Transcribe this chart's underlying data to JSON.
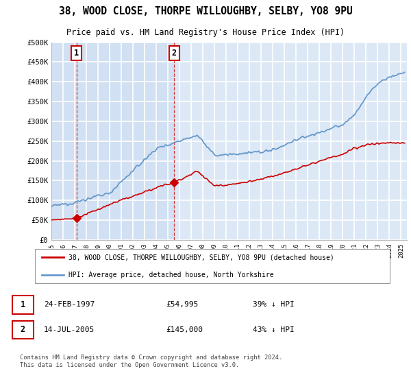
{
  "title": "38, WOOD CLOSE, THORPE WILLOUGHBY, SELBY, YO8 9PU",
  "subtitle": "Price paid vs. HM Land Registry's House Price Index (HPI)",
  "background_color": "#ffffff",
  "plot_bg_color": "#dce8f5",
  "grid_color": "#ffffff",
  "ylim": [
    0,
    500000
  ],
  "yticks": [
    0,
    50000,
    100000,
    150000,
    200000,
    250000,
    300000,
    350000,
    400000,
    450000,
    500000
  ],
  "ytick_labels": [
    "£0",
    "£50K",
    "£100K",
    "£150K",
    "£200K",
    "£250K",
    "£300K",
    "£350K",
    "£400K",
    "£450K",
    "£500K"
  ],
  "xlim_start": 1995.0,
  "xlim_end": 2025.5,
  "sale1_x": 1997.15,
  "sale1_y": 54995,
  "sale2_x": 2005.54,
  "sale2_y": 145000,
  "sale_color": "#cc0000",
  "hpi_color": "#6699cc",
  "shade_color": "#c8daf0",
  "legend_label_sale": "38, WOOD CLOSE, THORPE WILLOUGHBY, SELBY, YO8 9PU (detached house)",
  "legend_label_hpi": "HPI: Average price, detached house, North Yorkshire",
  "footer": "Contains HM Land Registry data © Crown copyright and database right 2024.\nThis data is licensed under the Open Government Licence v3.0.",
  "vline1_x": 1997.15,
  "vline2_x": 2005.54
}
